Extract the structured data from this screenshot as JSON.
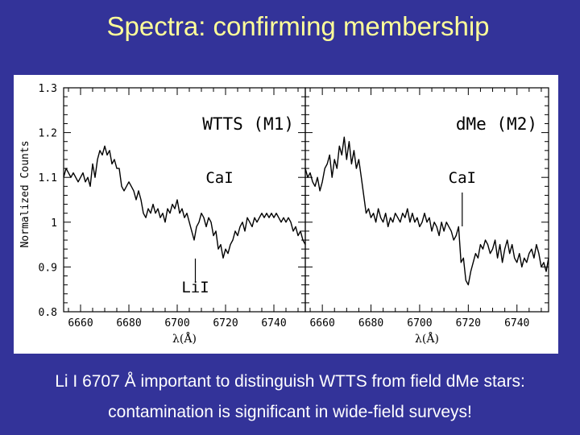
{
  "slide": {
    "title": "Spectra: confirming membership",
    "caption_line1": "Li I 6707 Å  important to distinguish WTTS from field dMe stars:",
    "caption_line2": "contamination is significant in wide-field surveys!"
  },
  "colors": {
    "background": "#333399",
    "title": "#ffff99",
    "caption": "#ffffff",
    "plot_bg": "#ffffff",
    "ink": "#000000"
  },
  "chart_data": [
    {
      "type": "line",
      "panel_label": "WTTS (M1)",
      "ylabel": "Normalized Counts",
      "xlabel": "λ(Å)",
      "xlim": [
        6653,
        6753
      ],
      "ylim": [
        0.8,
        1.3
      ],
      "x_ticks": [
        6660,
        6680,
        6700,
        6720,
        6740
      ],
      "y_ticks": [
        0.8,
        0.9,
        1,
        1.1,
        1.2,
        1.3
      ],
      "y_tick_labels": [
        "0.8",
        "0.9",
        "1",
        "1.1",
        "1.2",
        "1.3"
      ],
      "annotations": [
        {
          "text": "CaI",
          "x": 6717.5,
          "y": 1.02,
          "marker": "none"
        },
        {
          "text": "LiI",
          "x": 6707.5,
          "y": 0.96,
          "marker": "line-below"
        }
      ],
      "series": [
        {
          "x": [
            6653,
            6654,
            6655,
            6656,
            6657,
            6658,
            6659,
            6660,
            6661,
            6662,
            6663,
            6664,
            6665,
            6666,
            6667,
            6668,
            6669,
            6670,
            6671,
            6672,
            6673,
            6674,
            6675,
            6676,
            6677,
            6678,
            6679,
            6680,
            6681,
            6682,
            6683,
            6684,
            6685,
            6686,
            6687,
            6688,
            6689,
            6690,
            6691,
            6692,
            6693,
            6694,
            6695,
            6696,
            6697,
            6698,
            6699,
            6700,
            6701,
            6702,
            6703,
            6704,
            6705,
            6706,
            6707,
            6708,
            6709,
            6710,
            6711,
            6712,
            6713,
            6714,
            6715,
            6716,
            6717,
            6718,
            6719,
            6720,
            6721,
            6722,
            6723,
            6724,
            6725,
            6726,
            6727,
            6728,
            6729,
            6730,
            6731,
            6732,
            6733,
            6734,
            6735,
            6736,
            6737,
            6738,
            6739,
            6740,
            6741,
            6742,
            6743,
            6744,
            6745,
            6746,
            6747,
            6748,
            6749,
            6750,
            6751,
            6752,
            6753
          ],
          "y": [
            1.1,
            1.12,
            1.11,
            1.1,
            1.11,
            1.1,
            1.09,
            1.1,
            1.11,
            1.09,
            1.1,
            1.08,
            1.13,
            1.1,
            1.14,
            1.16,
            1.15,
            1.17,
            1.15,
            1.16,
            1.13,
            1.14,
            1.12,
            1.12,
            1.08,
            1.07,
            1.08,
            1.09,
            1.08,
            1.07,
            1.05,
            1.07,
            1.05,
            1.02,
            1.01,
            1.03,
            1.02,
            1.04,
            1.02,
            1.03,
            1.01,
            1.02,
            1.0,
            1.03,
            1.02,
            1.04,
            1.03,
            1.05,
            1.02,
            1.03,
            1.01,
            1.02,
            1.0,
            0.98,
            0.96,
            0.99,
            1.0,
            1.02,
            1.01,
            0.99,
            1.01,
            1.0,
            0.97,
            0.98,
            0.94,
            0.95,
            0.92,
            0.94,
            0.93,
            0.95,
            0.96,
            0.98,
            0.97,
            0.99,
            1.0,
            0.98,
            1.01,
            1.0,
            0.99,
            1.01,
            1.0,
            1.01,
            1.02,
            1.01,
            1.02,
            1.01,
            1.02,
            1.01,
            1.02,
            1.01,
            1.0,
            1.01,
            1.0,
            1.01,
            1.0,
            0.98,
            0.99,
            0.97,
            0.98,
            0.96,
            0.95
          ]
        }
      ]
    },
    {
      "type": "line",
      "panel_label": "dMe (M2)",
      "xlabel": "λ(Å)",
      "xlim": [
        6653,
        6753
      ],
      "ylim": [
        0.8,
        1.3
      ],
      "x_ticks": [
        6660,
        6680,
        6700,
        6720,
        6740
      ],
      "annotations": [
        {
          "text": "CaI",
          "x": 6717.5,
          "y": 1.02,
          "marker": "line-below"
        }
      ],
      "series": [
        {
          "x": [
            6653,
            6654,
            6655,
            6656,
            6657,
            6658,
            6659,
            6660,
            6661,
            6662,
            6663,
            6664,
            6665,
            6666,
            6667,
            6668,
            6669,
            6670,
            6671,
            6672,
            6673,
            6674,
            6675,
            6676,
            6677,
            6678,
            6679,
            6680,
            6681,
            6682,
            6683,
            6684,
            6685,
            6686,
            6687,
            6688,
            6689,
            6690,
            6691,
            6692,
            6693,
            6694,
            6695,
            6696,
            6697,
            6698,
            6699,
            6700,
            6701,
            6702,
            6703,
            6704,
            6705,
            6706,
            6707,
            6708,
            6709,
            6710,
            6711,
            6712,
            6713,
            6714,
            6715,
            6716,
            6717,
            6718,
            6719,
            6720,
            6721,
            6722,
            6723,
            6724,
            6725,
            6726,
            6727,
            6728,
            6729,
            6730,
            6731,
            6732,
            6733,
            6734,
            6735,
            6736,
            6737,
            6738,
            6739,
            6740,
            6741,
            6742,
            6743,
            6744,
            6745,
            6746,
            6747,
            6748,
            6749,
            6750,
            6751,
            6752,
            6753
          ],
          "y": [
            1.12,
            1.1,
            1.11,
            1.09,
            1.08,
            1.1,
            1.07,
            1.09,
            1.12,
            1.13,
            1.15,
            1.1,
            1.14,
            1.12,
            1.17,
            1.15,
            1.19,
            1.14,
            1.18,
            1.13,
            1.16,
            1.12,
            1.14,
            1.1,
            1.06,
            1.02,
            1.03,
            1.01,
            1.02,
            1.0,
            1.03,
            1.01,
            1.0,
            1.02,
            0.99,
            1.01,
            1.0,
            1.02,
            1.01,
            1.0,
            1.02,
            1.01,
            1.03,
            1.0,
            1.02,
            1.0,
            1.01,
            0.99,
            1.0,
            1.02,
            1.0,
            1.01,
            0.98,
            1.0,
            0.99,
            0.97,
            1.0,
            0.98,
            1.0,
            0.99,
            0.98,
            0.96,
            0.97,
            0.99,
            0.91,
            0.92,
            0.87,
            0.86,
            0.89,
            0.91,
            0.93,
            0.92,
            0.95,
            0.94,
            0.96,
            0.95,
            0.93,
            0.94,
            0.96,
            0.92,
            0.95,
            0.91,
            0.94,
            0.96,
            0.93,
            0.95,
            0.92,
            0.91,
            0.93,
            0.9,
            0.92,
            0.91,
            0.93,
            0.94,
            0.92,
            0.95,
            0.93,
            0.9,
            0.91,
            0.89,
            0.92
          ]
        }
      ]
    }
  ]
}
